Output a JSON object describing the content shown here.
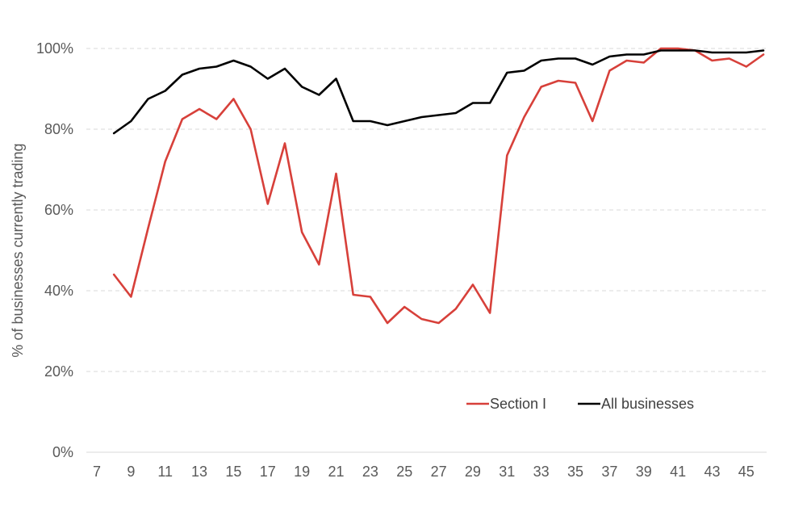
{
  "chart_data": {
    "type": "line",
    "title": "",
    "xlabel": "",
    "ylabel": "% of businesses currently trading",
    "xlim": [
      7,
      46
    ],
    "ylim": [
      0,
      100
    ],
    "x_ticks": [
      7,
      9,
      11,
      13,
      15,
      17,
      19,
      21,
      23,
      25,
      27,
      29,
      31,
      33,
      35,
      37,
      39,
      41,
      43,
      45
    ],
    "y_ticks": [
      0,
      20,
      40,
      60,
      80,
      100
    ],
    "y_tick_suffix": "%",
    "grid": "horizontal dashed",
    "legend": "bottom-right",
    "x": [
      8,
      9,
      10,
      11,
      12,
      13,
      14,
      15,
      16,
      17,
      18,
      19,
      20,
      21,
      22,
      23,
      24,
      25,
      26,
      27,
      28,
      29,
      30,
      31,
      32,
      33,
      34,
      35,
      36,
      37,
      38,
      39,
      40,
      41,
      42,
      43,
      44,
      45,
      46
    ],
    "series": [
      {
        "name": "Section I",
        "color": "#d7403a",
        "values": [
          44,
          38.5,
          55.5,
          72,
          82.5,
          85,
          82.5,
          87.5,
          80,
          61.5,
          76.5,
          54.5,
          46.5,
          69,
          39,
          38.5,
          32,
          36,
          33,
          32,
          35.5,
          41.5,
          34.5,
          73.5,
          83,
          90.5,
          92,
          91.5,
          82,
          94.5,
          97,
          96.5,
          100,
          100,
          99.5,
          97,
          97.5,
          95.5,
          98.5
        ]
      },
      {
        "name": "All businesses",
        "color": "#000000",
        "values": [
          79,
          82,
          87.5,
          89.5,
          93.5,
          95,
          95.5,
          97,
          95.5,
          92.5,
          95,
          90.5,
          88.5,
          92.5,
          82,
          82,
          81,
          82,
          83,
          83.5,
          84,
          86.5,
          86.5,
          94,
          94.5,
          97,
          97.5,
          97.5,
          96,
          98,
          98.5,
          98.5,
          99.5,
          99.5,
          99.5,
          99,
          99,
          99,
          99.5
        ]
      }
    ]
  }
}
